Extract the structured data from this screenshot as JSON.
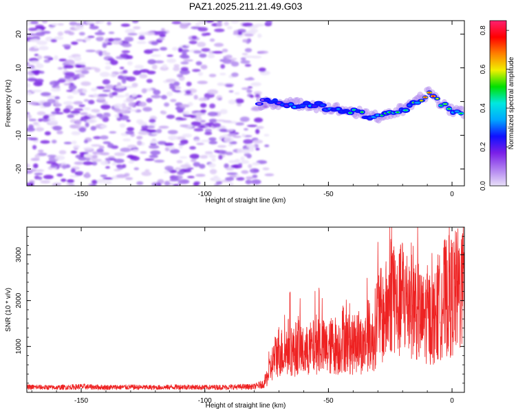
{
  "figure_title": "PAZ1.2025.211.21.49.G03",
  "chart_data": [
    {
      "type": "heatmap",
      "title": "PAZ1.2025.211.21.49.G03",
      "xlabel": "Height of straight line (km)",
      "ylabel": "Frequency (Hz)",
      "xlim": [
        -172,
        5
      ],
      "ylim": [
        -25,
        24
      ],
      "xticks": [
        -150,
        -100,
        -50,
        0
      ],
      "xtick_labels": [
        "-150",
        "-100",
        "-50",
        "0"
      ],
      "yticks": [
        20,
        10,
        0,
        -10,
        -20
      ],
      "ytick_labels": [
        "20",
        "10",
        "0",
        "-10",
        "-20"
      ],
      "grid": false,
      "colorbar": {
        "label": "Normalized spectral amplitude",
        "range": [
          0,
          0.85
        ],
        "ticks": [
          0.0,
          0.2,
          0.4,
          0.6,
          0.8
        ],
        "tick_labels": [
          "0.0",
          "0.2",
          "0.4",
          "0.6",
          "0.8"
        ],
        "colormap": [
          "#e8e0f8",
          "#b080f0",
          "#7a1fe8",
          "#1010ff",
          "#00a8ff",
          "#00e8e0",
          "#00e000",
          "#f0f000",
          "#ff8000",
          "#ff0000",
          "#ff2070"
        ]
      },
      "noise_region": {
        "x": [
          -172,
          -75
        ],
        "y": [
          -25,
          24
        ],
        "amplitude": 0.1
      },
      "signal_ridge": {
        "x": [
          -78,
          -75,
          -70,
          -65,
          -60,
          -55,
          -50,
          -45,
          -40,
          -35,
          -30,
          -25,
          -20,
          -15,
          -10,
          -8,
          -5,
          0,
          5
        ],
        "frequency": [
          -0.5,
          0.0,
          -0.5,
          -1.0,
          -0.5,
          -1.0,
          -2.0,
          -2.5,
          -3.0,
          -4.0,
          -4.5,
          -3.5,
          -2.5,
          -0.5,
          2.5,
          2.5,
          -0.5,
          -2.5,
          -3.0
        ],
        "amplitude": [
          0.25,
          0.3,
          0.35,
          0.4,
          0.45,
          0.4,
          0.45,
          0.45,
          0.5,
          0.5,
          0.55,
          0.55,
          0.6,
          0.55,
          0.85,
          0.8,
          0.6,
          0.7,
          0.65
        ]
      }
    },
    {
      "type": "line",
      "xlabel": "Height of straight line (km)",
      "ylabel": "SNR (10 * v/v)",
      "xlim": [
        -172,
        5
      ],
      "ylim": [
        0,
        3600
      ],
      "xticks": [
        -150,
        -100,
        -50,
        0
      ],
      "xtick_labels": [
        "-150",
        "-100",
        "-50",
        "0"
      ],
      "yticks": [
        1000,
        2000,
        3000
      ],
      "ytick_labels": [
        "1000",
        "2000",
        "3000"
      ],
      "grid": false,
      "color": "#ee2222",
      "series": [
        {
          "x": [
            -172,
            -160,
            -150,
            -140,
            -130,
            -120,
            -110,
            -100,
            -90,
            -80,
            -76,
            -74,
            -72,
            -70,
            -68,
            -66,
            -64,
            -62,
            -60,
            -58,
            -56,
            -54,
            -52,
            -50,
            -48,
            -46,
            -44,
            -42,
            -40,
            -38,
            -36,
            -34,
            -32,
            -30,
            -28,
            -26,
            -24,
            -22,
            -20,
            -18,
            -16,
            -14,
            -12,
            -10,
            -8,
            -6,
            -4,
            -2,
            0,
            2,
            4,
            5
          ],
          "values": [
            120,
            110,
            130,
            115,
            120,
            110,
            125,
            115,
            120,
            130,
            200,
            450,
            750,
            950,
            850,
            1050,
            900,
            1100,
            850,
            950,
            1000,
            1150,
            1000,
            950,
            1100,
            1000,
            1250,
            1100,
            1050,
            1200,
            1000,
            1300,
            1150,
            1800,
            1650,
            1900,
            2450,
            1800,
            2200,
            2000,
            2100,
            1850,
            1600,
            1750,
            1600,
            1750,
            2050,
            2150,
            2150,
            2250,
            2350,
            2200
          ]
        }
      ]
    }
  ]
}
